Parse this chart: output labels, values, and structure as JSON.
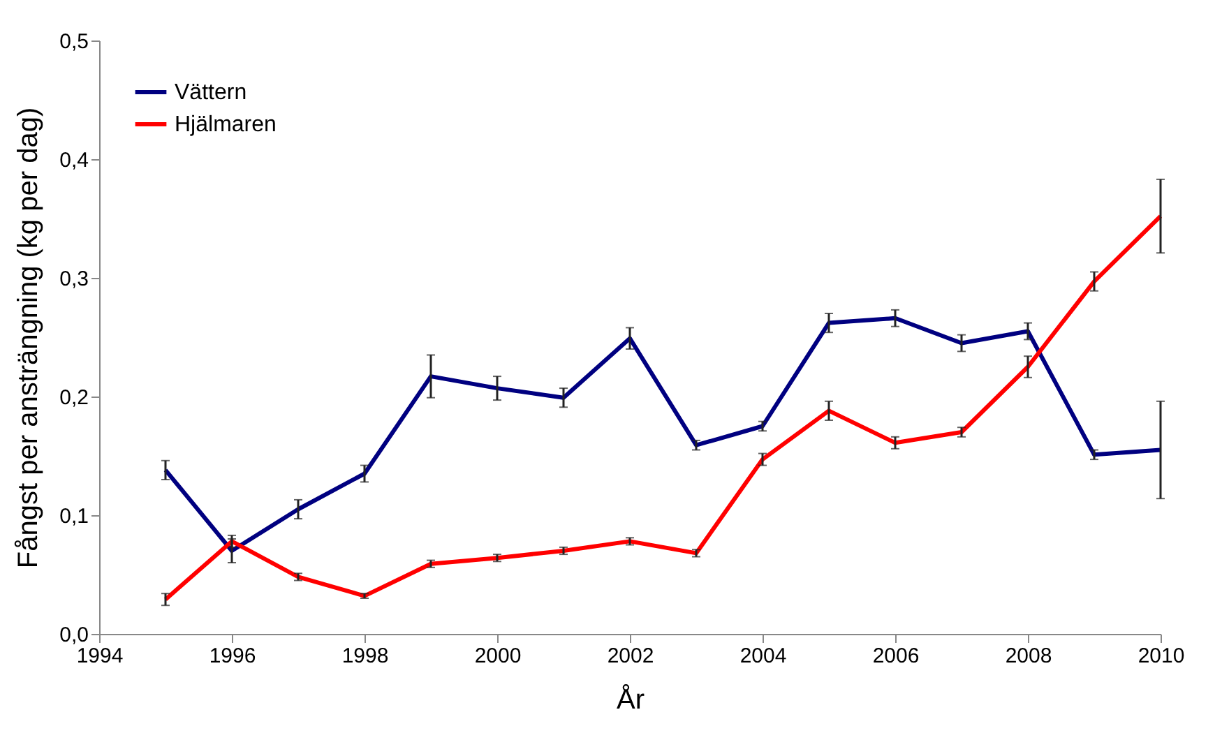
{
  "chart_data": {
    "type": "line",
    "xlabel": "År",
    "ylabel": "Fångst per ansträngning (kg per dag)",
    "x": [
      1995,
      1996,
      1997,
      1998,
      1999,
      2000,
      2001,
      2002,
      2003,
      2004,
      2005,
      2006,
      2007,
      2008,
      2009,
      2010
    ],
    "series": [
      {
        "name": "Vättern",
        "color": "#000080",
        "values": [
          0.138,
          0.07,
          0.105,
          0.135,
          0.217,
          0.207,
          0.199,
          0.249,
          0.159,
          0.175,
          0.262,
          0.266,
          0.245,
          0.255,
          0.151,
          0.155
        ],
        "errors": [
          0.008,
          0.01,
          0.008,
          0.007,
          0.018,
          0.01,
          0.008,
          0.009,
          0.004,
          0.004,
          0.008,
          0.007,
          0.007,
          0.007,
          0.004,
          0.041
        ]
      },
      {
        "name": "Hjälmaren",
        "color": "#ff0000",
        "values": [
          0.029,
          0.078,
          0.048,
          0.032,
          0.059,
          0.064,
          0.07,
          0.078,
          0.068,
          0.147,
          0.188,
          0.161,
          0.17,
          0.225,
          0.297,
          0.352
        ],
        "errors": [
          0.005,
          0.005,
          0.003,
          0.002,
          0.003,
          0.003,
          0.003,
          0.003,
          0.003,
          0.005,
          0.008,
          0.005,
          0.004,
          0.009,
          0.008,
          0.031
        ]
      }
    ],
    "xlim": [
      1994,
      2010
    ],
    "xticks": [
      1994,
      1996,
      1998,
      2000,
      2002,
      2004,
      2006,
      2008,
      2010
    ],
    "ylim": [
      0,
      0.5
    ],
    "yticks": [
      {
        "value": 0,
        "label": "0,0"
      },
      {
        "value": 0.1,
        "label": "0,1"
      },
      {
        "value": 0.2,
        "label": "0,2"
      },
      {
        "value": 0.3,
        "label": "0,3"
      },
      {
        "value": 0.4,
        "label": "0,4"
      },
      {
        "value": 0.5,
        "label": "0,5"
      }
    ],
    "grid": false,
    "legend": "top left",
    "marker": "none",
    "line_style": "solid"
  }
}
